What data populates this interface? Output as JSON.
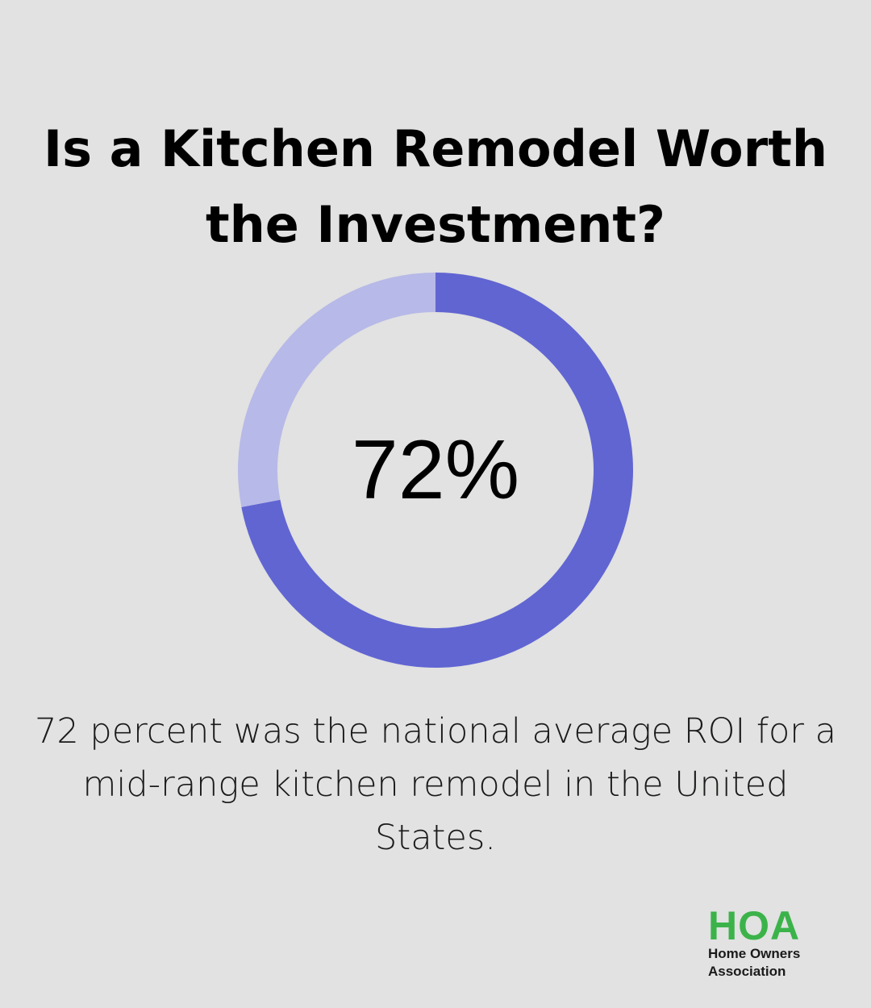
{
  "title": {
    "line1": "Is a Kitchen Remodel Worth",
    "line2": "the Investment?"
  },
  "chart_data": {
    "type": "pie",
    "value_label": "72%",
    "slices": [
      {
        "value": 72,
        "color": "#6165d2"
      },
      {
        "value": 28,
        "color": "#b7b9e8"
      }
    ]
  },
  "caption": {
    "line1": "72 percent was the national average ROI for a",
    "line2": "mid-range kitchen remodel in the United",
    "line3": "States."
  },
  "logo": {
    "mark": "HOA",
    "line1": "Home Owners",
    "line2": "Association",
    "color": "#3cb34a"
  },
  "colors": {
    "background": "#e1e2e1"
  }
}
